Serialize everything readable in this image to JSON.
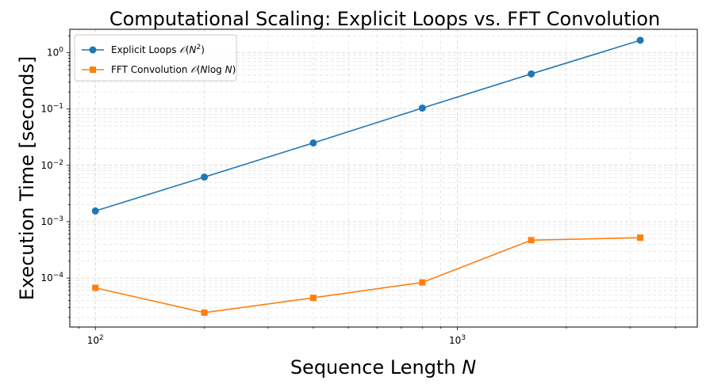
{
  "chart_data": {
    "type": "line",
    "title": "Computational Scaling: Explicit Loops vs. FFT Convolution",
    "xlabel": "Sequence Length N",
    "ylabel": "Execution Time [seconds]",
    "x_scale": "log",
    "y_scale": "log",
    "xlim": [
      85,
      4600
    ],
    "ylim": [
      1.35e-05,
      2.6
    ],
    "x_ticks": [
      {
        "value": 100,
        "base": "10",
        "exp": "2"
      },
      {
        "value": 1000,
        "base": "10",
        "exp": "3"
      }
    ],
    "y_ticks": [
      {
        "value": 0.0001,
        "base": "10",
        "exp": "−4"
      },
      {
        "value": 0.001,
        "base": "10",
        "exp": "−3"
      },
      {
        "value": 0.01,
        "base": "10",
        "exp": "−2"
      },
      {
        "value": 0.1,
        "base": "10",
        "exp": "−1"
      },
      {
        "value": 1,
        "base": "10",
        "exp": "0"
      }
    ],
    "grid": "both (major and minor), dashed",
    "legend_position": "top-left",
    "series": [
      {
        "name": "Explicit Loops O(N^2)",
        "color": "#1f77b4",
        "marker": "circle",
        "x": [
          100,
          200,
          400,
          800,
          1600,
          3200
        ],
        "y": [
          0.00155,
          0.0062,
          0.025,
          0.104,
          0.42,
          1.66
        ]
      },
      {
        "name": "FFT Convolution O(N log N)",
        "color": "#ff7f0e",
        "marker": "square",
        "x": [
          100,
          200,
          400,
          800,
          1600,
          3200
        ],
        "y": [
          6.7e-05,
          2.43e-05,
          4.45e-05,
          8.35e-05,
          0.00047,
          0.00052
        ]
      }
    ]
  }
}
